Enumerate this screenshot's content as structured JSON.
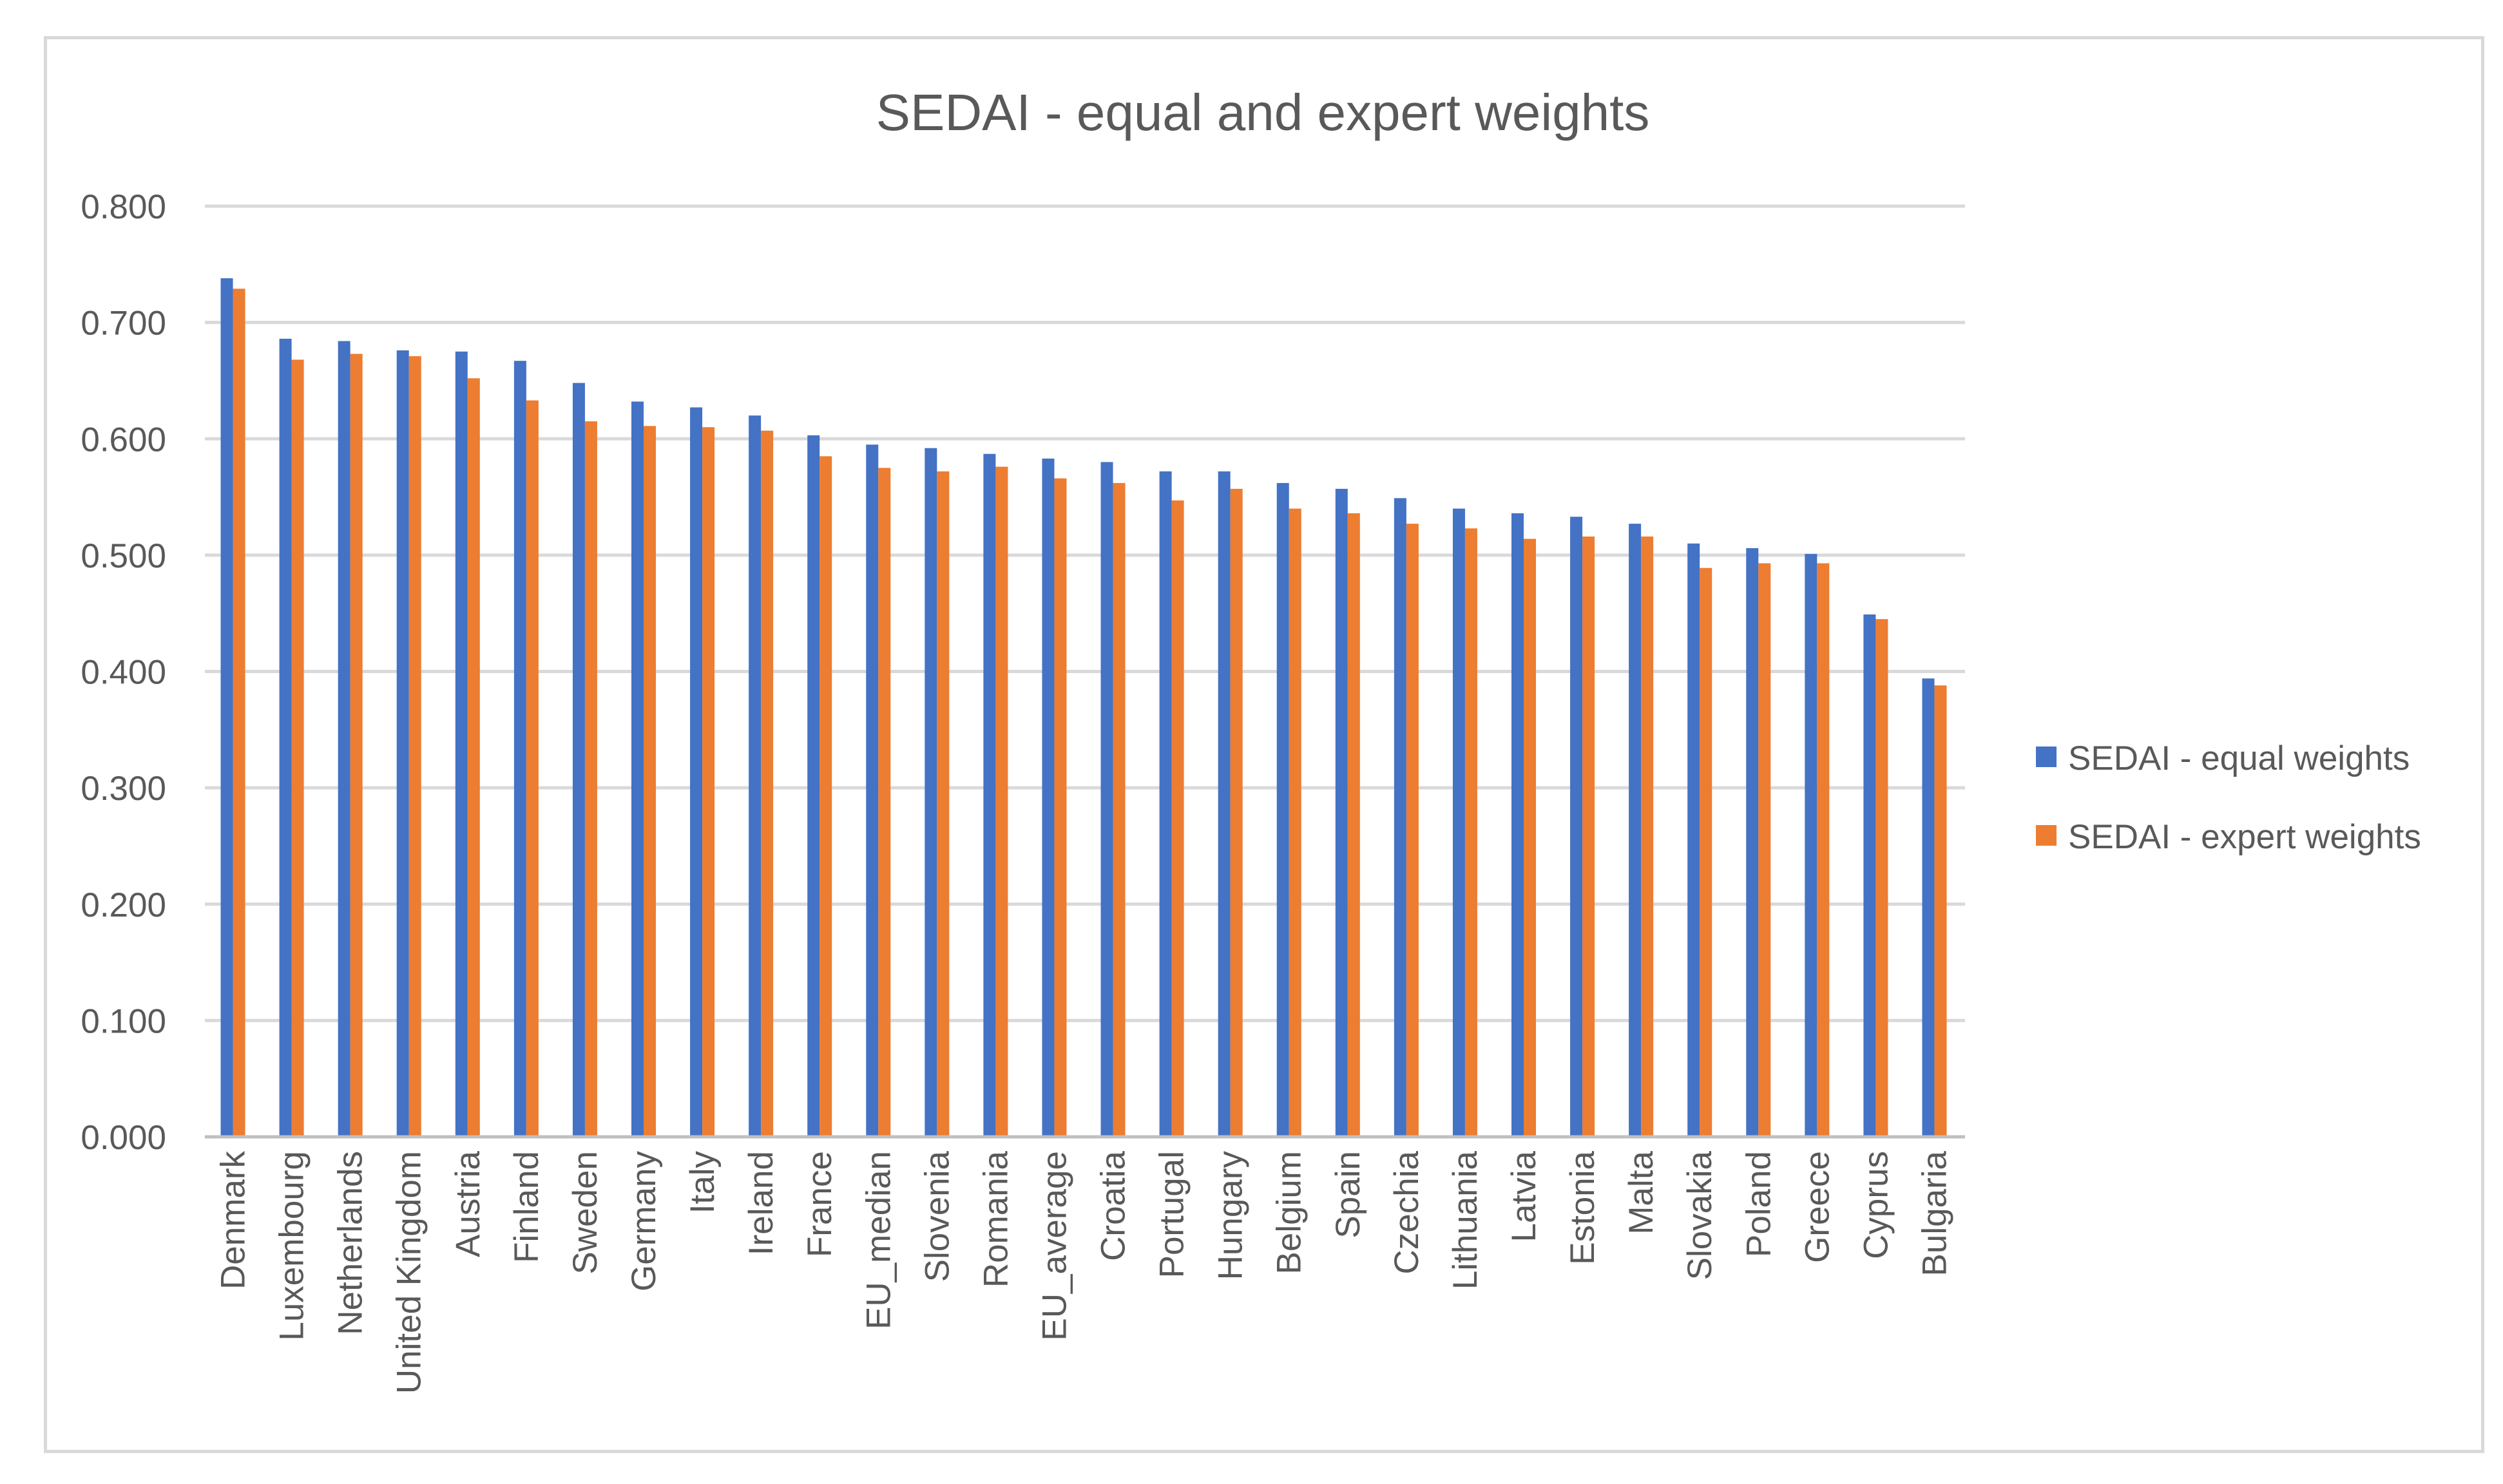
{
  "chart_data": {
    "type": "bar",
    "title": "SEDAI - equal and expert weights",
    "xlabel": "",
    "ylabel": "",
    "ylim": [
      0,
      0.8
    ],
    "yticks": [
      "0.000",
      "0.100",
      "0.200",
      "0.300",
      "0.400",
      "0.500",
      "0.600",
      "0.700",
      "0.800"
    ],
    "ytick_values": [
      0,
      0.1,
      0.2,
      0.3,
      0.4,
      0.5,
      0.6,
      0.7,
      0.8
    ],
    "grid": true,
    "legend_position": "right",
    "categories": [
      "Denmark",
      "Luxembourg",
      "Netherlands",
      "United Kingdom",
      "Austria",
      "Finland",
      "Sweden",
      "Germany",
      "Italy",
      "Ireland",
      "France",
      "EU_median",
      "Slovenia",
      "Romania",
      "EU_average",
      "Croatia",
      "Portugal",
      "Hungary",
      "Belgium",
      "Spain",
      "Czechia",
      "Lithuania",
      "Latvia",
      "Estonia",
      "Malta",
      "Slovakia",
      "Poland",
      "Greece",
      "Cyprus",
      "Bulgaria"
    ],
    "series": [
      {
        "name": "SEDAI - equal weights",
        "color": "#4472c4",
        "values": [
          0.738,
          0.686,
          0.684,
          0.676,
          0.675,
          0.667,
          0.648,
          0.632,
          0.627,
          0.62,
          0.603,
          0.595,
          0.592,
          0.587,
          0.583,
          0.58,
          0.572,
          0.572,
          0.562,
          0.557,
          0.549,
          0.54,
          0.536,
          0.533,
          0.527,
          0.51,
          0.506,
          0.501,
          0.449,
          0.394
        ]
      },
      {
        "name": "SEDAI - expert weights",
        "color": "#ed7d31",
        "values": [
          0.729,
          0.668,
          0.673,
          0.671,
          0.652,
          0.633,
          0.615,
          0.611,
          0.61,
          0.607,
          0.585,
          0.575,
          0.572,
          0.576,
          0.566,
          0.562,
          0.547,
          0.557,
          0.54,
          0.536,
          0.527,
          0.523,
          0.514,
          0.516,
          0.516,
          0.489,
          0.493,
          0.493,
          0.445,
          0.388
        ]
      }
    ]
  }
}
